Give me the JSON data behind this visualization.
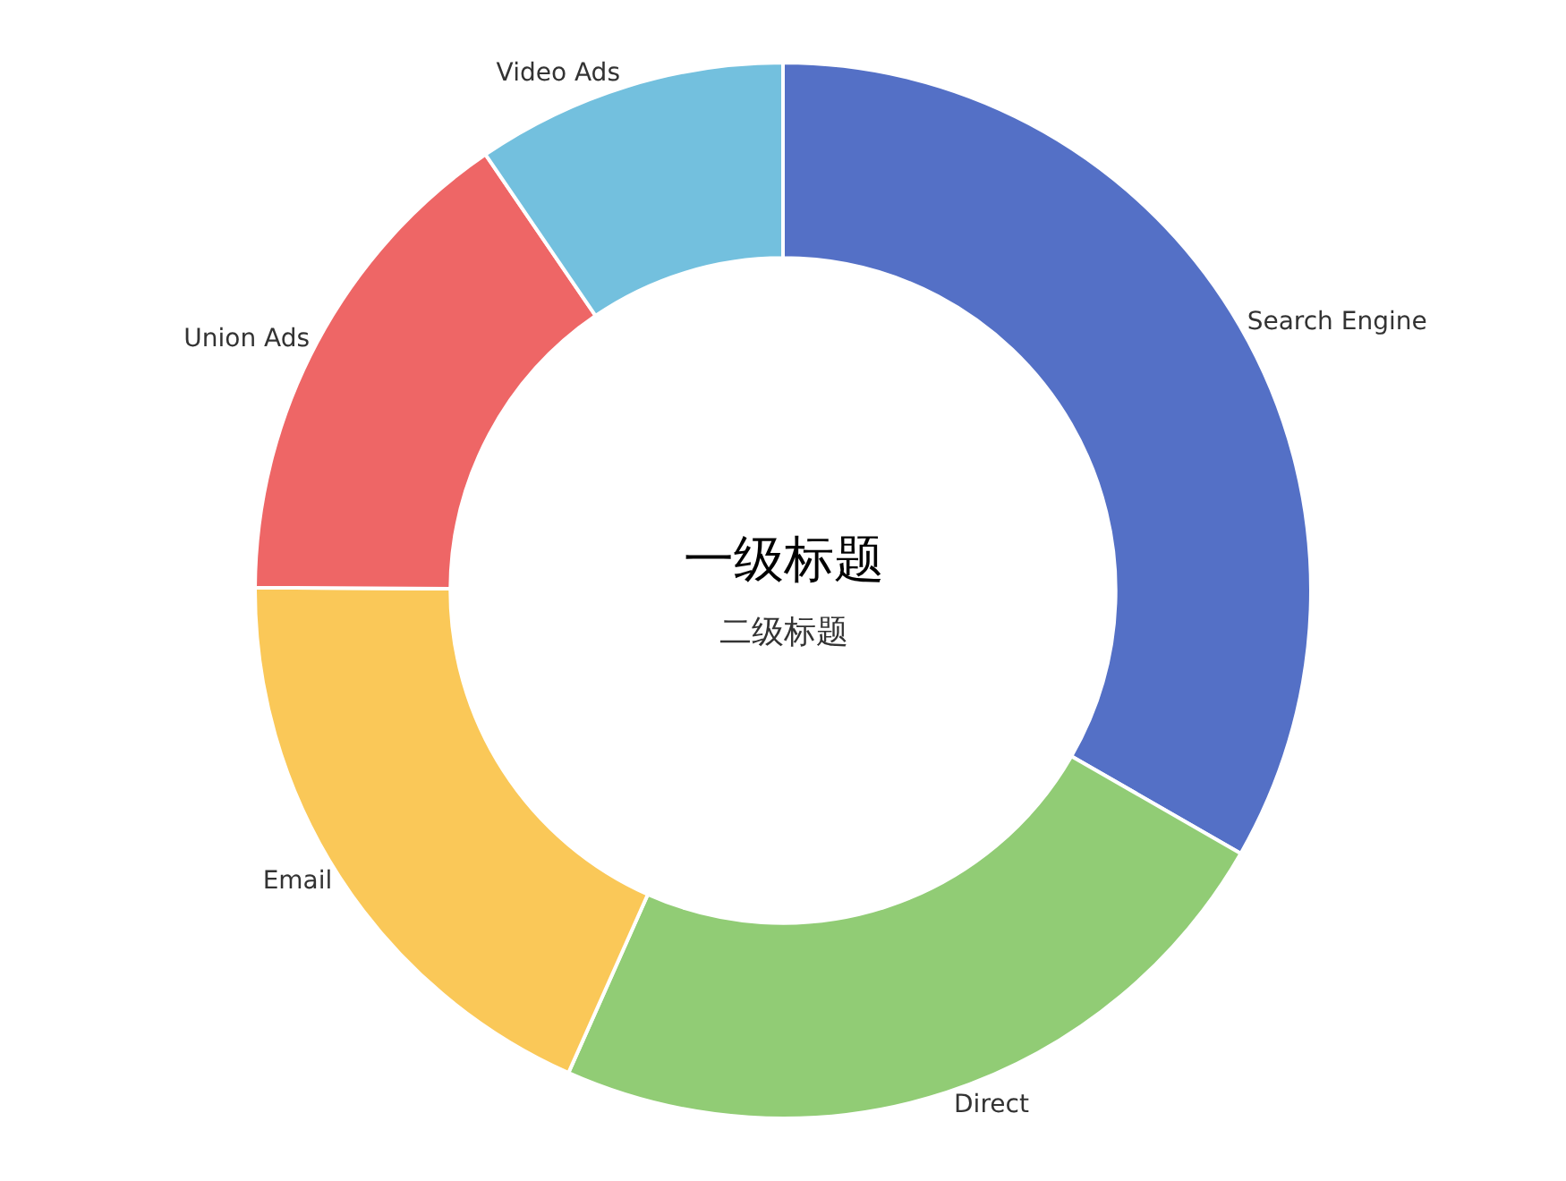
{
  "chart_data": {
    "type": "donut",
    "title": "一级标题",
    "subtitle": "二级标题",
    "categories": [
      "Search Engine",
      "Direct",
      "Email",
      "Union Ads",
      "Video Ads"
    ],
    "values": [
      33.3,
      23.36,
      18.43,
      15.38,
      9.53
    ],
    "colors": [
      "#5470c6",
      "#91cc75",
      "#fac858",
      "#ee6666",
      "#73c0de"
    ],
    "legend": false
  }
}
